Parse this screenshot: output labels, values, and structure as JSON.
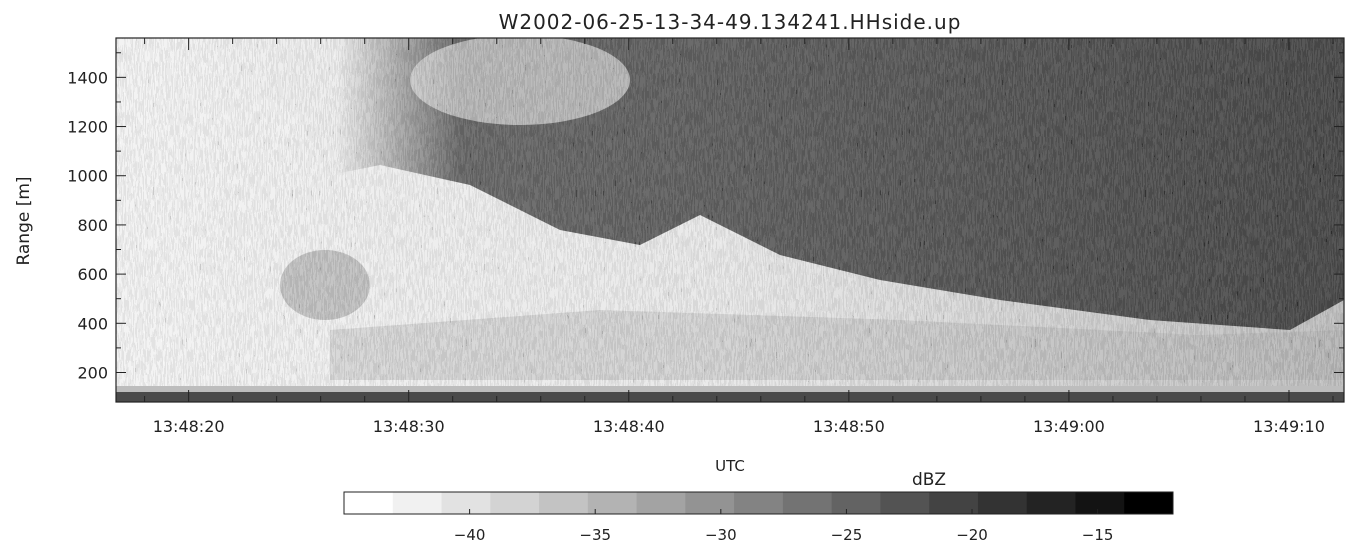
{
  "chart_data": {
    "type": "heatmap",
    "title": "W2002-06-25-13-34-49.134241.HHside.up",
    "xlabel": "UTC",
    "ylabel": "Range [m]",
    "x_ticks": [
      "13:48:20",
      "13:48:30",
      "13:48:40",
      "13:48:50",
      "13:49:00",
      "13:49:10"
    ],
    "xlim_seconds_after_13_48_00": [
      16.7,
      72.5
    ],
    "y_ticks": [
      200,
      400,
      600,
      800,
      1000,
      1200,
      1400
    ],
    "ylim": [
      80,
      1560
    ],
    "colorbar": {
      "label": "dBZ",
      "ticks": [
        -40,
        -35,
        -30,
        -25,
        -20,
        -15
      ],
      "range": [
        -45,
        -12
      ],
      "colors": [
        "#ffffff",
        "#f1f1f1",
        "#e2e2e2",
        "#d3d3d3",
        "#c3c3c3",
        "#b3b3b3",
        "#a3a3a3",
        "#939393",
        "#838383",
        "#737373",
        "#636363",
        "#535353",
        "#434343",
        "#333333",
        "#232323",
        "#131313",
        "#000000"
      ]
    },
    "description_regions": {
      "cloud_dark_upper_right": "strong returns (~-18 to -12 dBZ) above ~1000 m after 13:48:50",
      "sloping_boundary": "echo base descends from ~1100 m near 13:48:30 to ~300 m near 13:49:10",
      "weak_lower_left": "weak/noisy returns (< -35 dBZ) below the boundary"
    }
  }
}
